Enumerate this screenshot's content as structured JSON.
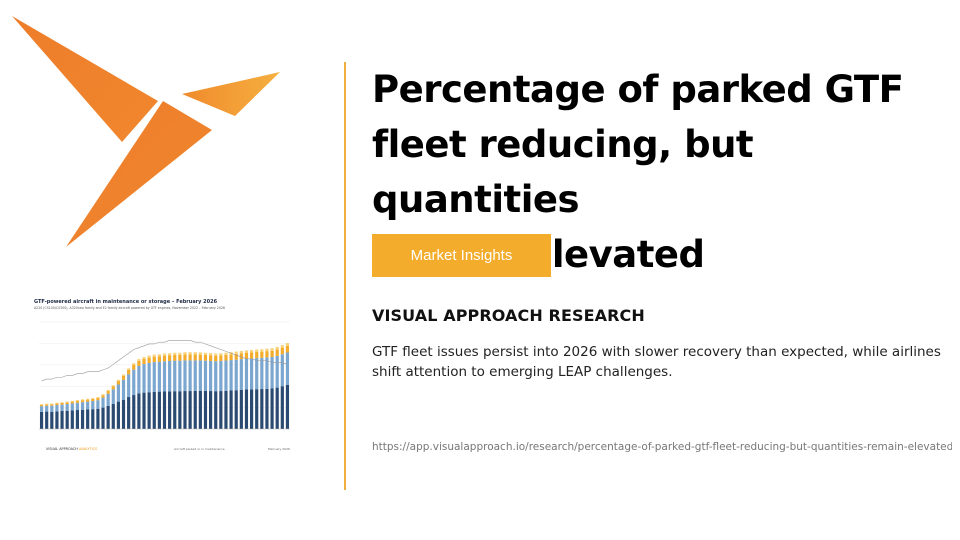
{
  "brand": {
    "logo_icon": "paper-plane-arrow-logo",
    "colors": {
      "orange": "#ee7d2a",
      "orange_light": "#f5a83a",
      "accent": "#f3ac2c",
      "divider": "#f0b040"
    }
  },
  "article": {
    "headline_line1": "Percentage of parked GTF",
    "headline_line2": "fleet reducing, but quantities",
    "headline_line3": "remain elevated",
    "category_label": "Market Insights",
    "source": "VISUAL APPROACH RESEARCH",
    "description": "GTF fleet issues persist into 2026 with slower recovery than expected, while airlines shift attention to emerging LEAP challenges.",
    "url": "https://app.visualapproach.io/research/percentage-of-parked-gtf-fleet-reducing-but-quantities-remain-elevated"
  },
  "thumbnail": {
    "title": "GTF-powered aircraft in maintenance or storage – February 2026",
    "subtitle": "A220 (CS100/CS300), A320neo family and E2 family aircraft powered by GTF engines, November 2022 – February 2026",
    "footer_brand_a": "VISUAL APPROACH",
    "footer_brand_b": "ANALYTICS",
    "footer_note": "Aircraft parked or in maintenance",
    "footer_date": "February 2026"
  },
  "chart_data": {
    "type": "bar",
    "stacked": true,
    "series": [
      {
        "color": "#2b4a72",
        "values": [
          120,
          122,
          121,
          124,
          126,
          128,
          130,
          133,
          135,
          137,
          139,
          142,
          150,
          162,
          176,
          192,
          205,
          224,
          238,
          250,
          255,
          258,
          261,
          262,
          263,
          264,
          265,
          265,
          266,
          266,
          267,
          268,
          267,
          266,
          265,
          266,
          268,
          270,
          272,
          275,
          277,
          278,
          279,
          280,
          282,
          284,
          290,
          300,
          310
        ]
      },
      {
        "color": "#7aa6cf",
        "values": [
          40,
          41,
          42,
          44,
          45,
          47,
          49,
          51,
          53,
          55,
          57,
          60,
          70,
          85,
          102,
          120,
          140,
          160,
          178,
          192,
          200,
          205,
          208,
          210,
          212,
          213,
          214,
          214,
          215,
          215,
          214,
          213,
          212,
          211,
          210,
          211,
          212,
          213,
          214,
          215,
          216,
          217,
          218,
          219,
          220,
          221,
          222,
          224,
          226
        ]
      },
      {
        "color": "#f3ac2c",
        "values": [
          10,
          10,
          11,
          11,
          12,
          12,
          13,
          13,
          14,
          14,
          15,
          15,
          17,
          19,
          21,
          24,
          27,
          30,
          33,
          35,
          36,
          37,
          38,
          38,
          39,
          39,
          40,
          40,
          41,
          41,
          41,
          40,
          40,
          40,
          39,
          39,
          40,
          40,
          41,
          41,
          42,
          42,
          43,
          43,
          44,
          44,
          45,
          46,
          47
        ]
      },
      {
        "color": "#f8d27a",
        "values": [
          4,
          4,
          4,
          5,
          5,
          5,
          5,
          6,
          6,
          6,
          6,
          7,
          7,
          8,
          8,
          9,
          10,
          11,
          12,
          13,
          13,
          14,
          14,
          14,
          15,
          15,
          15,
          15,
          16,
          16,
          16,
          16,
          15,
          15,
          15,
          15,
          15,
          16,
          16,
          16,
          16,
          17,
          17,
          17,
          17,
          18,
          18,
          18,
          19
        ]
      }
    ],
    "line": {
      "color": "#999999",
      "values": [
        26,
        27,
        27,
        28,
        28,
        29,
        29,
        30,
        30,
        31,
        31,
        31,
        32,
        33,
        35,
        37,
        39,
        41,
        43,
        44,
        45,
        46,
        46,
        47,
        47,
        48,
        48,
        48,
        48,
        48,
        47,
        47,
        46,
        45,
        44,
        43,
        42,
        41,
        40,
        39,
        38,
        38,
        37,
        37,
        37,
        36,
        36,
        36,
        35
      ]
    },
    "ylim": [
      0,
      750
    ],
    "grid": true
  }
}
